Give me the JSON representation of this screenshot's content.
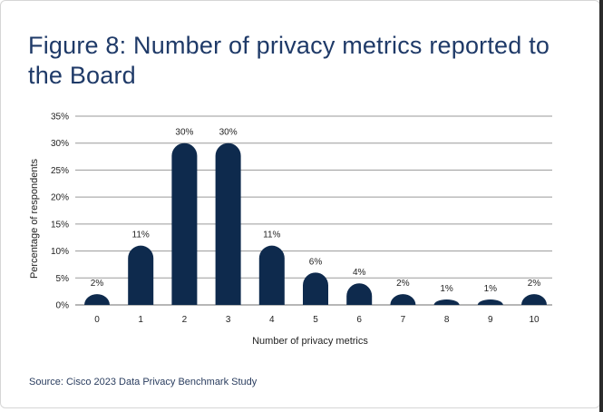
{
  "title": "Figure 8: Number of privacy metrics reported to the Board",
  "source": "Source: Cisco 2023 Data Privacy Benchmark Study",
  "chart_data": {
    "type": "bar",
    "categories": [
      "0",
      "1",
      "2",
      "3",
      "4",
      "5",
      "6",
      "7",
      "8",
      "9",
      "10"
    ],
    "values": [
      2,
      11,
      30,
      30,
      11,
      6,
      4,
      2,
      1,
      1,
      2
    ],
    "value_labels": [
      "2%",
      "11%",
      "30%",
      "30%",
      "11%",
      "6%",
      "4%",
      "2%",
      "1%",
      "1%",
      "2%"
    ],
    "xlabel": "Number of privacy metrics",
    "ylabel": "Percentage of respondents",
    "ylim": [
      0,
      35
    ],
    "yticks": [
      0,
      5,
      10,
      15,
      20,
      25,
      30,
      35
    ],
    "ytick_labels": [
      "0%",
      "5%",
      "10%",
      "15%",
      "20%",
      "25%",
      "30%",
      "35%"
    ],
    "grid": true,
    "bar_color": "#0e2a4d"
  }
}
